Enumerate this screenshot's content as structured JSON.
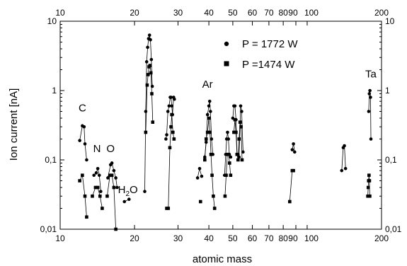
{
  "chart_data": {
    "type": "scatter",
    "xlabel": "atomic mass",
    "ylabel": "Ion current [nA]",
    "xscale": "log",
    "yscale": "log",
    "xlim": [
      10,
      200
    ],
    "ylim": [
      0.01,
      10
    ],
    "grid": false,
    "legend_position": "top-center",
    "x_ticks_bottom": [
      {
        "v": 10,
        "label": "10"
      },
      {
        "v": 20,
        "label": "20"
      },
      {
        "v": 30,
        "label": "30"
      },
      {
        "v": 40,
        "label": "40"
      },
      {
        "v": 50,
        "label": "50"
      },
      {
        "v": 60,
        "label": "60"
      },
      {
        "v": 70,
        "label": "70"
      },
      {
        "v": 80,
        "label": "80"
      },
      {
        "v": 90,
        "label": "90"
      },
      {
        "v": 100,
        "label": "100"
      },
      {
        "v": 200,
        "label": "200"
      }
    ],
    "x_ticks_top": [
      {
        "v": 10,
        "label": "10"
      },
      {
        "v": 20,
        "label": "20"
      },
      {
        "v": 30,
        "label": "30"
      },
      {
        "v": 40,
        "label": "40"
      },
      {
        "v": 50,
        "label": "50"
      },
      {
        "v": 60,
        "label": "60"
      },
      {
        "v": 70,
        "label": "70"
      },
      {
        "v": 80,
        "label": "80"
      },
      {
        "v": 90,
        "label": "90"
      },
      {
        "v": 100,
        "label": "100"
      },
      {
        "v": 200,
        "label": "200"
      }
    ],
    "y_ticks": [
      {
        "v": 0.01,
        "label": "0,01"
      },
      {
        "v": 0.1,
        "label": "0,1"
      },
      {
        "v": 1,
        "label": "1"
      },
      {
        "v": 10,
        "label": "10"
      }
    ],
    "annotations": [
      {
        "text": "C",
        "x": 12.3,
        "y": 0.5
      },
      {
        "text": "N",
        "x": 14.1,
        "y": 0.13
      },
      {
        "text": "O",
        "x": 16.0,
        "y": 0.13
      },
      {
        "text": "H",
        "sub": "2",
        "tail": "O",
        "x": 18.8,
        "y": 0.033
      },
      {
        "text": "Ar",
        "x": 39.5,
        "y": 1.1
      },
      {
        "text": "Ta",
        "x": 181,
        "y": 1.55
      }
    ],
    "series": [
      {
        "name": "P = 1772 W",
        "marker": "circle",
        "segments": [
          [
            [
              12,
              0.19
            ],
            [
              12.3,
              0.31
            ],
            [
              12.5,
              0.3
            ],
            [
              12.6,
              0.17
            ],
            [
              12.8,
              0.1
            ]
          ],
          [
            [
              13.7,
              0.06
            ],
            [
              14,
              0.065
            ],
            [
              14.2,
              0.075
            ],
            [
              14.4,
              0.06
            ],
            [
              14.6,
              0.035
            ]
          ],
          [
            [
              15.6,
              0.055
            ],
            [
              16,
              0.085
            ],
            [
              16.2,
              0.09
            ],
            [
              16.5,
              0.07
            ],
            [
              16.8,
              0.055
            ],
            [
              17,
              0.04
            ]
          ],
          [
            [
              18.2,
              0.025
            ],
            [
              19,
              0.027
            ]
          ],
          [
            [
              22,
              0.035
            ],
            [
              22.2,
              0.5
            ],
            [
              22.4,
              2.6
            ],
            [
              22.6,
              4.2
            ],
            [
              22.8,
              5.6
            ],
            [
              23,
              6.3
            ],
            [
              23.2,
              5.4
            ],
            [
              23.4,
              2.8
            ],
            [
              23.6,
              1.15
            ]
          ],
          [
            [
              26.8,
              0.2
            ],
            [
              27,
              0.23
            ],
            [
              27.3,
              0.5
            ],
            [
              27.6,
              0.6
            ],
            [
              27.9,
              0.8
            ],
            [
              28.1,
              0.8
            ],
            [
              28.3,
              0.6
            ],
            [
              28.5,
              0.45
            ],
            [
              28.8,
              0.8
            ],
            [
              29,
              0.75
            ]
          ],
          [
            [
              36,
              0.055
            ],
            [
              36.7,
              0.075
            ],
            [
              37.4,
              0.058
            ]
          ],
          [
            [
              38.5,
              0.11
            ],
            [
              39,
              0.18
            ],
            [
              39.5,
              0.45
            ],
            [
              40,
              0.6
            ],
            [
              40.3,
              0.7
            ],
            [
              40.6,
              0.5
            ],
            [
              41,
              0.2
            ],
            [
              41.5,
              0.12
            ]
          ],
          [
            [
              46.3,
              0.06
            ],
            [
              46.8,
              0.12
            ],
            [
              47.2,
              0.2
            ],
            [
              47.6,
              0.25
            ],
            [
              48,
              0.2
            ],
            [
              48.4,
              0.12
            ],
            [
              49,
              0.11
            ]
          ],
          [
            [
              50,
              0.4
            ],
            [
              50.5,
              0.6
            ],
            [
              51,
              0.6
            ],
            [
              51.5,
              0.38
            ],
            [
              52,
              0.12
            ],
            [
              52.5,
              0.12
            ],
            [
              53,
              0.11
            ],
            [
              53.8,
              0.6
            ],
            [
              54.3,
              0.5
            ],
            [
              55,
              0.13
            ]
          ],
          [
            [
              87,
              0.14
            ],
            [
              88,
              0.17
            ],
            [
              89,
              0.13
            ]
          ],
          [
            [
              138,
              0.07
            ],
            [
              140,
              0.15
            ],
            [
              141.5,
              0.16
            ],
            [
              143,
              0.075
            ]
          ],
          [
            [
              177.5,
              0.5
            ],
            [
              178.5,
              0.9
            ],
            [
              179.5,
              1.0
            ],
            [
              180.5,
              0.8
            ],
            [
              181.2,
              0.2
            ]
          ]
        ]
      },
      {
        "name": "P =1474 W",
        "marker": "square",
        "segments": [
          [
            [
              12,
              0.05
            ],
            [
              12.3,
              0.06
            ],
            [
              12.6,
              0.03
            ],
            [
              12.8,
              0.015
            ]
          ],
          [
            [
              13.5,
              0.03
            ],
            [
              13.9,
              0.04
            ],
            [
              14.2,
              0.04
            ],
            [
              14.5,
              0.03
            ],
            [
              14.8,
              0.02
            ]
          ],
          [
            [
              15.5,
              0.03
            ],
            [
              15.9,
              0.06
            ],
            [
              16.2,
              0.06
            ],
            [
              16.5,
              0.04
            ],
            [
              16.8,
              0.01
            ]
          ],
          [
            [
              22.2,
              0.25
            ],
            [
              22.5,
              1.2
            ],
            [
              22.7,
              1.7
            ],
            [
              22.9,
              2.2
            ],
            [
              23.1,
              2.3
            ],
            [
              23.3,
              1.8
            ],
            [
              23.5,
              0.9
            ],
            [
              23.7,
              0.35
            ]
          ],
          [
            [
              27,
              0.02
            ],
            [
              27.4,
              0.02
            ],
            [
              27.8,
              0.15
            ],
            [
              28.1,
              0.3
            ],
            [
              28.3,
              0.45
            ],
            [
              28.6,
              0.25
            ],
            [
              28.9,
              0.2
            ]
          ],
          [
            [
              37,
              0.025
            ]
          ],
          [
            [
              38.5,
              0.1
            ],
            [
              39,
              0.2
            ],
            [
              39.5,
              0.25
            ],
            [
              40,
              0.4
            ],
            [
              40.4,
              0.25
            ],
            [
              40.8,
              0.12
            ],
            [
              41.2,
              0.06
            ],
            [
              41.7,
              0.03
            ],
            [
              42.2,
              0.02
            ]
          ],
          [
            [
              46.5,
              0.03
            ],
            [
              47,
              0.06
            ],
            [
              47.5,
              0.12
            ],
            [
              48,
              0.12
            ],
            [
              48.5,
              0.09
            ],
            [
              49,
              0.06
            ]
          ],
          [
            [
              50.5,
              0.25
            ],
            [
              51,
              0.38
            ],
            [
              51.5,
              0.25
            ],
            [
              52,
              0.12
            ],
            [
              52.5,
              0.1
            ],
            [
              53,
              0.2
            ],
            [
              53.5,
              0.35
            ],
            [
              54,
              0.3
            ],
            [
              54.5,
              0.1
            ]
          ],
          [
            [
              85,
              0.025
            ],
            [
              87,
              0.07
            ],
            [
              88,
              0.07
            ]
          ],
          [
            [
              176,
              0.03
            ],
            [
              176.7,
              0.04
            ],
            [
              177.3,
              0.05
            ],
            [
              178,
              0.06
            ],
            [
              178.7,
              0.05
            ],
            [
              179.3,
              0.03
            ]
          ]
        ]
      }
    ]
  }
}
